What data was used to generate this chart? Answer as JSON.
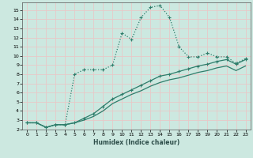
{
  "xlabel": "Humidex (Indice chaleur)",
  "background_color": "#cce8e0",
  "grid_color": "#e8c8c8",
  "line_color": "#2e7d6b",
  "xlim": [
    -0.5,
    23.5
  ],
  "ylim": [
    2,
    15.8
  ],
  "xticks": [
    0,
    1,
    2,
    3,
    4,
    5,
    6,
    7,
    8,
    9,
    10,
    11,
    12,
    13,
    14,
    15,
    16,
    17,
    18,
    19,
    20,
    21,
    22,
    23
  ],
  "yticks": [
    2,
    3,
    4,
    5,
    6,
    7,
    8,
    9,
    10,
    11,
    12,
    13,
    14,
    15
  ],
  "series1_x": [
    0,
    1,
    2,
    3,
    4,
    5,
    6,
    7,
    8,
    9,
    10,
    11,
    12,
    13,
    14,
    15,
    16,
    17,
    18,
    19,
    20,
    21,
    22,
    23
  ],
  "series1_y": [
    2.7,
    2.7,
    2.2,
    2.5,
    2.5,
    8.0,
    8.5,
    8.5,
    8.5,
    9.0,
    12.5,
    11.8,
    14.2,
    15.3,
    15.5,
    14.2,
    11.0,
    9.9,
    9.9,
    10.3,
    9.9,
    9.9,
    9.2,
    9.7
  ],
  "series2_x": [
    0,
    1,
    2,
    3,
    4,
    5,
    6,
    7,
    8,
    9,
    10,
    11,
    12,
    13,
    14,
    15,
    16,
    17,
    18,
    19,
    20,
    21,
    22,
    23
  ],
  "series2_y": [
    2.7,
    2.7,
    2.2,
    2.5,
    2.5,
    2.7,
    3.2,
    3.7,
    4.5,
    5.3,
    5.8,
    6.3,
    6.8,
    7.3,
    7.8,
    8.0,
    8.3,
    8.6,
    8.9,
    9.1,
    9.4,
    9.6,
    9.1,
    9.6
  ],
  "series3_x": [
    0,
    1,
    2,
    3,
    4,
    5,
    6,
    7,
    8,
    9,
    10,
    11,
    12,
    13,
    14,
    15,
    16,
    17,
    18,
    19,
    20,
    21,
    22,
    23
  ],
  "series3_y": [
    2.7,
    2.7,
    2.2,
    2.5,
    2.5,
    2.7,
    3.0,
    3.4,
    4.0,
    4.8,
    5.3,
    5.8,
    6.2,
    6.7,
    7.1,
    7.4,
    7.6,
    7.9,
    8.2,
    8.4,
    8.7,
    8.9,
    8.4,
    8.9
  ]
}
